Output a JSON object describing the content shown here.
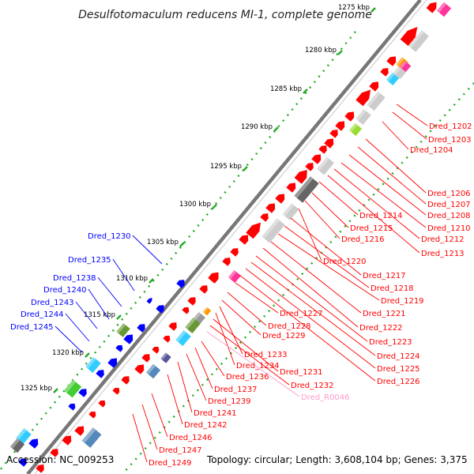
{
  "title": "Desulfotomaculum reducens MI-1, complete genome",
  "footer": {
    "accession": "Accession: NC_009253",
    "summary": "Topology: circular; Length: 3,608,104 bp; Genes: 3,375"
  },
  "colors": {
    "gene_forward": "#ff0000",
    "gene_reverse": "#0000ff",
    "rna": "#ff99cc",
    "backbone": "#999999",
    "dots": "#22aa22"
  },
  "ticks": [
    "1275 kbp",
    "1280 kbp",
    "1285 kbp",
    "1290 kbp",
    "1295 kbp",
    "1300 kbp",
    "1305 kbp",
    "1310 kbp",
    "1315 kbp",
    "1320 kbp",
    "1325 kbp"
  ],
  "labels_right": [
    "Dred_1202",
    "Dred_1203",
    "Dred_1204",
    "Dred_1206",
    "Dred_1207",
    "Dred_1208",
    "Dred_1210",
    "Dred_1212",
    "Dred_1213",
    "Dred_1214",
    "Dred_1215",
    "Dred_1216",
    "Dred_1220",
    "Dred_1217",
    "Dred_1218",
    "Dred_1219",
    "Dred_1221",
    "Dred_1222",
    "Dred_1223",
    "Dred_1224",
    "Dred_1225",
    "Dred_1226",
    "Dred_1227",
    "Dred_1228",
    "Dred_1229",
    "Dred_1233",
    "Dred_1234",
    "Dred_1231",
    "Dred_1232",
    "Dred_R0046",
    "Dred_1236",
    "Dred_1237",
    "Dred_1239",
    "Dred_1241",
    "Dred_1242",
    "Dred_1246",
    "Dred_1247",
    "Dred_1249"
  ],
  "labels_left": [
    "Dred_1230",
    "Dred_1235",
    "Dred_1238",
    "Dred_1240",
    "Dred_1243",
    "Dred_1244",
    "Dred_1245"
  ]
}
